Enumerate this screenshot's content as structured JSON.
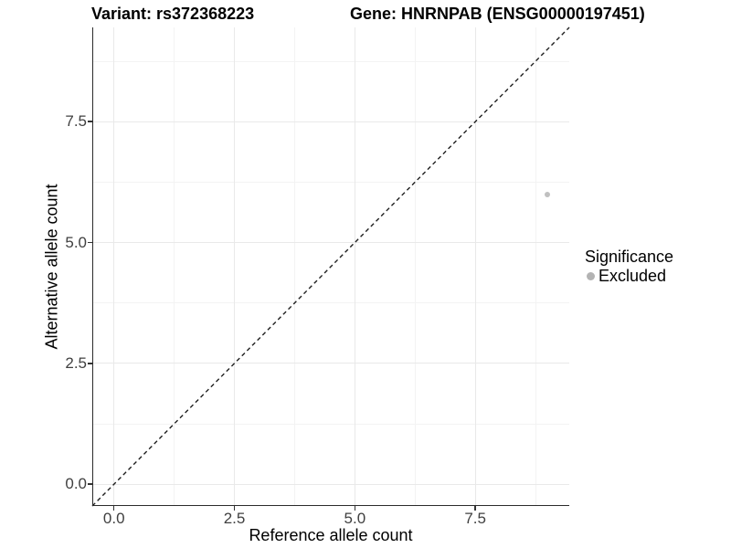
{
  "chart_data": {
    "type": "scatter",
    "title_left": "Variant: rs372368223",
    "title_right": "Gene: HNRNPAB (ENSG00000197451)",
    "xlabel": "Reference allele count",
    "ylabel": "Alternative allele count",
    "xlim": [
      -0.45,
      9.45
    ],
    "ylim": [
      -0.45,
      9.45
    ],
    "x_ticks": [
      0.0,
      2.5,
      5.0,
      7.5
    ],
    "x_tick_labels": [
      "0.0",
      "2.5",
      "5.0",
      "7.5"
    ],
    "y_ticks": [
      0.0,
      2.5,
      5.0,
      7.5
    ],
    "y_tick_labels": [
      "0.0",
      "2.5",
      "5.0",
      "7.5"
    ],
    "x_minor_ticks": [
      1.25,
      3.75,
      6.25,
      8.75
    ],
    "y_minor_ticks": [
      1.25,
      3.75,
      6.25,
      8.75
    ],
    "grid": "major and minor gridlines, light grey on white panel",
    "identity_line": {
      "style": "dashed",
      "color": "#1f1f1f",
      "from": [
        -0.45,
        -0.45
      ],
      "to": [
        9.45,
        9.45
      ]
    },
    "series": [
      {
        "name": "Excluded",
        "color": "#c0c0c0",
        "point_radius_px": 3,
        "points": [
          [
            9,
            6
          ]
        ]
      }
    ],
    "legend": {
      "title": "Significance",
      "position": "right",
      "entries": [
        {
          "label": "Excluded",
          "color": "#b3b3b3"
        }
      ]
    }
  },
  "style": {
    "axis_line_color": "#2b2b2b",
    "tick_label_color": "#404040",
    "grid_major_color": "#e9e9e9",
    "grid_minor_color": "#f3f3f3",
    "background": "#ffffff"
  }
}
